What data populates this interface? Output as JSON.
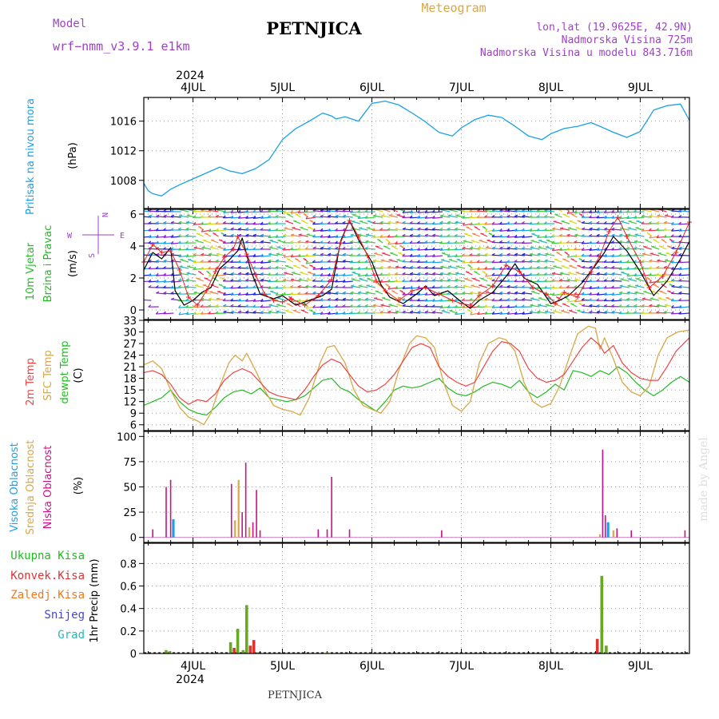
{
  "header": {
    "model_label": "Model",
    "model_name": "wrf−nmm_v3.9.1 e1km",
    "title": "PETNJICA",
    "chart_kind": "Meteogram",
    "lonlat": "lon,lat (19.9625E, 42.9N)",
    "elevation": "Nadmorska Visina 725m",
    "model_elevation": "Nadmorska Visina u modelu 843.716m"
  },
  "footer": {
    "station": "PETNJICA",
    "credit": "made by Angel"
  },
  "time_axis": {
    "year": "2024",
    "day_labels": [
      "4JUL",
      "5JUL",
      "6JUL",
      "7JUL",
      "8JUL",
      "9JUL"
    ],
    "range_days": [
      -0.55,
      5.55
    ]
  },
  "colors": {
    "pressure": "#1aa0e6",
    "wind_speed": "#000000",
    "wind_gust": "#ee2222",
    "t2m": "#ee4444",
    "sfc": "#d8a848",
    "dewpt": "#22bb22",
    "cloud_high": "#1aa0e6",
    "cloud_mid": "#d8a848",
    "cloud_low": "#cc1188",
    "precip_total": "#66aa22",
    "precip_conv": "#dd3333",
    "precip_frozen": "#ee7722",
    "precip_snow": "#4444dd",
    "precip_hail": "#22bbbb",
    "purple": "#a040c8",
    "orange": "#d8a848"
  },
  "compass": {
    "n": "N",
    "s": "S",
    "w": "W",
    "e": "E"
  },
  "chart_data": [
    {
      "panel": "pressure",
      "type": "line",
      "ylabel": [
        "Pritisak na nivou mora",
        "(hPa)"
      ],
      "ylim": [
        1004.2,
        1019.2
      ],
      "yticks": [
        1008,
        1012,
        1016
      ],
      "grid": true,
      "series": [
        {
          "x": [
            -0.55,
            -0.5,
            -0.45,
            -0.35,
            -0.25,
            -0.15,
            0,
            0.15,
            0.3,
            0.4,
            0.55,
            0.7,
            0.85,
            1.0,
            1.15,
            1.3,
            1.45,
            1.55,
            1.6,
            1.7,
            1.85,
            2.0,
            2.15,
            2.3,
            2.45,
            2.6,
            2.75,
            2.9,
            3.0,
            3.15,
            3.3,
            3.45,
            3.6,
            3.75,
            3.9,
            4.0,
            4.15,
            4.3,
            4.45,
            4.55,
            4.7,
            4.85,
            5.0,
            5.15,
            5.3,
            5.45,
            5.55
          ],
          "y": [
            1007.6,
            1006.6,
            1006.2,
            1005.9,
            1006.8,
            1007.4,
            1008.2,
            1009.0,
            1009.8,
            1009.3,
            1008.9,
            1009.6,
            1010.8,
            1013.5,
            1015.0,
            1016.0,
            1017.1,
            1016.7,
            1016.3,
            1016.6,
            1016.0,
            1018.4,
            1018.7,
            1018.2,
            1017.1,
            1015.9,
            1014.5,
            1014.0,
            1015.1,
            1016.2,
            1016.8,
            1016.5,
            1015.3,
            1014.0,
            1013.5,
            1014.3,
            1015.0,
            1015.3,
            1015.8,
            1015.3,
            1014.5,
            1013.8,
            1014.6,
            1017.5,
            1018.1,
            1018.3,
            1016.1
          ]
        }
      ]
    },
    {
      "panel": "wind",
      "type": "line",
      "ylabel": [
        "10m Vjetar",
        "Brzina i Pravac",
        "(m/s)"
      ],
      "ylim": [
        -0.6,
        6.3
      ],
      "yticks": [
        0,
        2,
        4,
        6
      ],
      "grid": true,
      "series": [
        {
          "name": "speed",
          "x": [
            -0.55,
            -0.45,
            -0.35,
            -0.25,
            -0.2,
            -0.1,
            0.0,
            0.1,
            0.2,
            0.3,
            0.4,
            0.5,
            0.55,
            0.65,
            0.75,
            0.9,
            1.0,
            1.15,
            1.3,
            1.45,
            1.55,
            1.65,
            1.75,
            1.85,
            2.0,
            2.1,
            2.2,
            2.35,
            2.5,
            2.6,
            2.7,
            2.85,
            3.0,
            3.1,
            3.2,
            3.35,
            3.5,
            3.6,
            3.7,
            3.85,
            4.0,
            4.1,
            4.2,
            4.35,
            4.5,
            4.6,
            4.7,
            4.85,
            5.0,
            5.15,
            5.3,
            5.45,
            5.55
          ],
          "y": [
            2.5,
            3.6,
            3.2,
            3.9,
            1.2,
            0.3,
            0.6,
            1.1,
            1.4,
            2.6,
            3.1,
            3.7,
            4.5,
            2.4,
            1.0,
            0.7,
            0.9,
            0.3,
            0.6,
            0.9,
            1.3,
            4.3,
            5.6,
            4.4,
            3.0,
            1.6,
            0.8,
            0.4,
            1.0,
            1.5,
            0.9,
            1.2,
            0.5,
            0.1,
            0.6,
            1.1,
            2.1,
            2.9,
            2.0,
            1.6,
            0.4,
            0.6,
            0.9,
            1.7,
            2.8,
            3.6,
            4.6,
            3.7,
            2.4,
            0.9,
            1.8,
            3.2,
            4.3
          ]
        },
        {
          "name": "gust",
          "x": [
            -0.55,
            -0.45,
            -0.35,
            -0.25,
            -0.15,
            -0.05,
            0.05,
            0.15,
            0.25,
            0.35,
            0.45,
            0.5,
            0.6,
            0.7,
            0.8,
            0.9,
            1.0,
            1.1,
            1.25,
            1.4,
            1.55,
            1.65,
            1.75,
            1.85,
            1.95,
            2.05,
            2.15,
            2.3,
            2.45,
            2.6,
            2.75,
            2.9,
            3.0,
            3.1,
            3.2,
            3.35,
            3.5,
            3.65,
            3.8,
            3.95,
            4.05,
            4.15,
            4.3,
            4.45,
            4.55,
            4.65,
            4.75,
            4.85,
            5.0,
            5.1,
            5.25,
            5.4,
            5.55
          ],
          "y": [
            3.0,
            4.1,
            3.6,
            3.7,
            2.5,
            0.8,
            0.3,
            1.2,
            2.4,
            3.3,
            3.8,
            4.6,
            3.5,
            2.2,
            1.0,
            0.6,
            0.5,
            0.7,
            0.3,
            0.9,
            1.9,
            4.2,
            5.6,
            4.6,
            3.4,
            1.8,
            1.2,
            0.6,
            1.2,
            1.4,
            1.0,
            0.6,
            0.4,
            0.3,
            0.9,
            1.5,
            2.8,
            2.4,
            1.4,
            1.0,
            0.4,
            1.1,
            0.8,
            2.4,
            3.4,
            4.9,
            5.8,
            4.6,
            3.0,
            1.4,
            2.1,
            3.6,
            5.5
          ]
        }
      ],
      "barbs": true
    },
    {
      "panel": "temperature",
      "type": "line",
      "ylabel": [
        "2m Temp",
        "SFC Temp",
        "dewpt Temp",
        "(C)"
      ],
      "ylim": [
        4.5,
        33
      ],
      "yticks": [
        6,
        9,
        12,
        15,
        18,
        21,
        24,
        27,
        30,
        33
      ],
      "grid": true,
      "series": [
        {
          "name": "2m Temp",
          "x": [
            -0.55,
            -0.45,
            -0.35,
            -0.25,
            -0.15,
            -0.05,
            0.05,
            0.15,
            0.25,
            0.35,
            0.45,
            0.55,
            0.65,
            0.75,
            0.85,
            0.95,
            1.05,
            1.15,
            1.25,
            1.35,
            1.45,
            1.55,
            1.65,
            1.75,
            1.85,
            1.95,
            2.05,
            2.15,
            2.25,
            2.35,
            2.45,
            2.55,
            2.65,
            2.75,
            2.85,
            2.95,
            3.05,
            3.15,
            3.25,
            3.35,
            3.45,
            3.55,
            3.65,
            3.75,
            3.85,
            3.95,
            4.05,
            4.15,
            4.25,
            4.35,
            4.45,
            4.55,
            4.6,
            4.7,
            4.8,
            4.9,
            5.0,
            5.1,
            5.2,
            5.3,
            5.4,
            5.55
          ],
          "y": [
            19.5,
            20.0,
            19.0,
            16.5,
            13.0,
            11.3,
            12.5,
            12.0,
            14.0,
            17.5,
            19.5,
            20.5,
            19.5,
            17.0,
            14.5,
            13.5,
            13.0,
            12.5,
            15.0,
            18.5,
            21.5,
            23.0,
            22.0,
            19.0,
            16.0,
            14.5,
            15.0,
            16.5,
            19.0,
            22.5,
            26.0,
            27.0,
            26.0,
            21.0,
            18.5,
            17.0,
            16.0,
            17.0,
            21.0,
            25.0,
            27.5,
            27.0,
            25.0,
            20.5,
            18.0,
            17.0,
            17.5,
            19.0,
            22.5,
            26.0,
            28.5,
            26.5,
            24.5,
            26.5,
            22.0,
            19.5,
            18.0,
            17.5,
            17.5,
            21.0,
            25.0,
            28.5
          ]
        },
        {
          "name": "SFC Temp",
          "x": [
            -0.55,
            -0.45,
            -0.35,
            -0.25,
            -0.15,
            -0.05,
            0.05,
            0.12,
            0.2,
            0.3,
            0.4,
            0.47,
            0.55,
            0.6,
            0.7,
            0.8,
            0.9,
            1.0,
            1.1,
            1.2,
            1.3,
            1.42,
            1.5,
            1.58,
            1.7,
            1.8,
            1.9,
            2.0,
            2.1,
            2.2,
            2.3,
            2.42,
            2.5,
            2.6,
            2.7,
            2.8,
            2.9,
            3.0,
            3.1,
            3.2,
            3.3,
            3.42,
            3.5,
            3.6,
            3.7,
            3.8,
            3.9,
            4.0,
            4.1,
            4.2,
            4.3,
            4.42,
            4.5,
            4.55,
            4.6,
            4.7,
            4.8,
            4.9,
            5.0,
            5.1,
            5.2,
            5.3,
            5.42,
            5.55
          ],
          "y": [
            21.5,
            22.5,
            20.5,
            15.0,
            10.5,
            8.0,
            7.0,
            6.0,
            9.0,
            16.0,
            22.0,
            24.0,
            22.5,
            24.5,
            20.0,
            15.0,
            11.0,
            10.0,
            9.5,
            8.5,
            13.0,
            22.0,
            26.0,
            26.5,
            22.0,
            15.0,
            11.0,
            10.0,
            9.0,
            12.0,
            20.0,
            27.0,
            29.0,
            28.5,
            26.0,
            17.0,
            11.0,
            9.5,
            12.0,
            22.0,
            27.0,
            28.5,
            28.0,
            25.0,
            17.0,
            12.0,
            10.5,
            11.5,
            16.0,
            23.0,
            29.5,
            31.5,
            31.0,
            25.5,
            28.5,
            23.0,
            17.0,
            14.5,
            13.5,
            16.0,
            24.0,
            28.5,
            30.0,
            30.5
          ]
        },
        {
          "name": "dewpt Temp",
          "x": [
            -0.55,
            -0.45,
            -0.35,
            -0.25,
            -0.15,
            -0.05,
            0.05,
            0.15,
            0.25,
            0.35,
            0.45,
            0.55,
            0.65,
            0.75,
            0.85,
            0.95,
            1.05,
            1.15,
            1.25,
            1.35,
            1.45,
            1.55,
            1.65,
            1.75,
            1.85,
            1.95,
            2.05,
            2.15,
            2.25,
            2.35,
            2.45,
            2.55,
            2.65,
            2.75,
            2.85,
            2.95,
            3.05,
            3.15,
            3.25,
            3.35,
            3.45,
            3.55,
            3.65,
            3.75,
            3.85,
            3.95,
            4.05,
            4.15,
            4.25,
            4.35,
            4.45,
            4.55,
            4.65,
            4.75,
            4.85,
            4.95,
            5.05,
            5.15,
            5.25,
            5.35,
            5.45,
            5.55
          ],
          "y": [
            11.0,
            12.0,
            13.0,
            15.0,
            12.0,
            10.0,
            9.0,
            8.5,
            10.5,
            13.0,
            14.5,
            15.0,
            14.0,
            15.5,
            13.0,
            12.5,
            12.0,
            12.5,
            13.5,
            15.5,
            17.5,
            18.0,
            15.5,
            14.5,
            12.5,
            11.0,
            9.5,
            12.0,
            15.0,
            16.0,
            15.5,
            16.0,
            17.0,
            18.0,
            15.5,
            14.0,
            13.5,
            14.5,
            16.0,
            17.0,
            16.5,
            15.5,
            17.5,
            14.5,
            13.0,
            14.5,
            16.5,
            15.0,
            20.0,
            19.5,
            18.5,
            20.0,
            19.0,
            21.0,
            19.5,
            17.0,
            15.0,
            13.5,
            15.0,
            17.0,
            18.5,
            17.0
          ]
        }
      ]
    },
    {
      "panel": "clouds",
      "type": "bar",
      "ylabel": [
        "Visoka Oblacnost",
        "Srednja Oblacnost",
        "Niska Oblacnost",
        "(%)"
      ],
      "ylim": [
        -5,
        105
      ],
      "yticks": [
        0,
        25,
        50,
        75,
        100
      ],
      "grid": true,
      "bars": [
        {
          "x": -0.45,
          "v": 8,
          "layer": "low"
        },
        {
          "x": -0.3,
          "v": 50,
          "layer": "low"
        },
        {
          "x": -0.25,
          "v": 57,
          "layer": "low"
        },
        {
          "x": -0.22,
          "v": 18,
          "layer": "high"
        },
        {
          "x": 0.43,
          "v": 53,
          "layer": "low"
        },
        {
          "x": 0.47,
          "v": 17,
          "layer": "mid"
        },
        {
          "x": 0.51,
          "v": 57,
          "layer": "mid"
        },
        {
          "x": 0.55,
          "v": 25,
          "layer": "low"
        },
        {
          "x": 0.59,
          "v": 74,
          "layer": "low"
        },
        {
          "x": 0.63,
          "v": 10,
          "layer": "mid"
        },
        {
          "x": 0.67,
          "v": 15,
          "layer": "low"
        },
        {
          "x": 0.71,
          "v": 47,
          "layer": "low"
        },
        {
          "x": 0.75,
          "v": 7,
          "layer": "low"
        },
        {
          "x": 1.4,
          "v": 8,
          "layer": "low"
        },
        {
          "x": 1.5,
          "v": 8,
          "layer": "low"
        },
        {
          "x": 1.55,
          "v": 60,
          "layer": "low"
        },
        {
          "x": 1.75,
          "v": 8,
          "layer": "low"
        },
        {
          "x": 2.78,
          "v": 7,
          "layer": "low"
        },
        {
          "x": 4.55,
          "v": 3,
          "layer": "mid"
        },
        {
          "x": 4.58,
          "v": 87,
          "layer": "low"
        },
        {
          "x": 4.61,
          "v": 22,
          "layer": "low"
        },
        {
          "x": 4.64,
          "v": 15,
          "layer": "high"
        },
        {
          "x": 4.7,
          "v": 7,
          "layer": "mid"
        },
        {
          "x": 4.74,
          "v": 9,
          "layer": "low"
        },
        {
          "x": 4.9,
          "v": 7,
          "layer": "low"
        },
        {
          "x": 5.5,
          "v": 7,
          "layer": "low"
        }
      ]
    },
    {
      "panel": "precip",
      "type": "bar",
      "ylabel": [
        "1hr Precip (mm)"
      ],
      "legend": [
        "Ukupna Kisa",
        "Konvek.Kisa",
        "Zaledj.Kisa",
        "Snijeg",
        "Grad"
      ],
      "ylim": [
        0,
        0.98
      ],
      "yticks": [
        0,
        0.2,
        0.4,
        0.6,
        0.8
      ],
      "grid": true,
      "bars": [
        {
          "x": -0.3,
          "v": 0.03,
          "kind": "total"
        },
        {
          "x": -0.26,
          "v": 0.02,
          "kind": "total"
        },
        {
          "x": 0.42,
          "v": 0.1,
          "kind": "total"
        },
        {
          "x": 0.46,
          "v": 0.05,
          "kind": "conv"
        },
        {
          "x": 0.5,
          "v": 0.22,
          "kind": "total"
        },
        {
          "x": 0.56,
          "v": 0.03,
          "kind": "total"
        },
        {
          "x": 0.6,
          "v": 0.43,
          "kind": "total"
        },
        {
          "x": 0.64,
          "v": 0.07,
          "kind": "conv"
        },
        {
          "x": 0.68,
          "v": 0.12,
          "kind": "conv"
        },
        {
          "x": 0.72,
          "v": 0.01,
          "kind": "total"
        },
        {
          "x": 1.5,
          "v": 0.01,
          "kind": "total"
        },
        {
          "x": 4.52,
          "v": 0.13,
          "kind": "conv"
        },
        {
          "x": 4.57,
          "v": 0.69,
          "kind": "total"
        },
        {
          "x": 4.62,
          "v": 0.07,
          "kind": "total"
        }
      ]
    }
  ]
}
